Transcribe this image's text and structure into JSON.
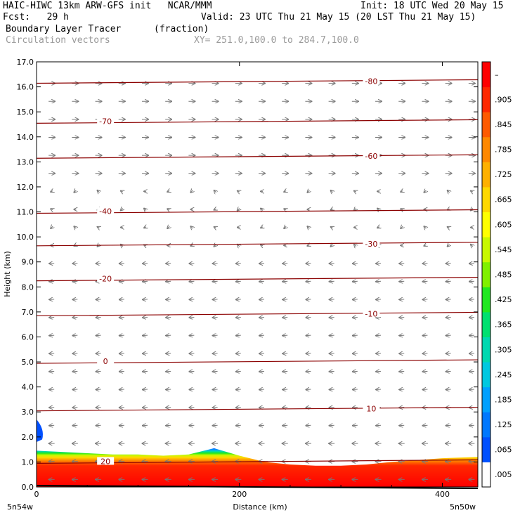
{
  "header": {
    "line1_left": "HAIC-HIWC 13km ARW-GFS init   NCAR/MMM",
    "line1_right": "Init: 18 UTC Wed 20 May 15",
    "line2_left": "Fcst:   29 h",
    "line2_right": "Valid: 23 UTC Thu 21 May 15 (20 LST Thu 21 May 15)",
    "line3_left": "Boundary Layer Tracer",
    "line3_mid": "(fraction)",
    "line4_left": "Circulation vectors",
    "line4_mid": "XY= 251.0,100.0 to 284.7,100.0"
  },
  "chart_data": {
    "type": "cross-section",
    "title": "Boundary Layer Tracer",
    "units": "(fraction)",
    "xlabel": "Distance (km)",
    "ylabel": "Height (km)",
    "xlim": [
      0,
      435
    ],
    "ylim": [
      0,
      17
    ],
    "x_ticks": [
      0,
      200,
      400
    ],
    "y_ticks": [
      "0.0",
      "1.0",
      "2.0",
      "3.0",
      "4.0",
      "5.0",
      "6.0",
      "7.0",
      "8.0",
      "9.0",
      "10.0",
      "11.0",
      "12.0",
      "13.0",
      "14.0",
      "15.0",
      "16.0",
      "17.0"
    ],
    "x_end_labels": {
      "left": "5n54w",
      "right": "5n50w"
    },
    "colorbar": {
      "labels": [
        ".005",
        ".065",
        ".125",
        ".185",
        ".245",
        ".305",
        ".365",
        ".425",
        ".485",
        ".545",
        ".605",
        ".665",
        ".725",
        ".785",
        ".845",
        ".905",
        "–"
      ],
      "colors": [
        "#ffffff",
        "#0050ff",
        "#0078ff",
        "#00a0ff",
        "#00c8e0",
        "#00d8b0",
        "#00e070",
        "#20e820",
        "#80f000",
        "#c8f800",
        "#ffff00",
        "#ffd800",
        "#ffb000",
        "#ff8800",
        "#ff5a00",
        "#ff2800",
        "#ff0000"
      ]
    },
    "temperature_contours": [
      {
        "value": 20,
        "height_km": 1.0,
        "label": "20"
      },
      {
        "value": 10,
        "height_km": 3.1,
        "label": "10"
      },
      {
        "value": 0,
        "height_km": 5.0,
        "label": "0"
      },
      {
        "value": -10,
        "height_km": 6.9,
        "label": "-10"
      },
      {
        "value": -20,
        "height_km": 8.3,
        "label": "-20"
      },
      {
        "value": -30,
        "height_km": 9.7,
        "label": "-30"
      },
      {
        "value": -40,
        "height_km": 11.0,
        "label": "-40"
      },
      {
        "value": -60,
        "height_km": 13.2,
        "label": "-60"
      },
      {
        "value": -70,
        "height_km": 14.6,
        "label": "-70"
      },
      {
        "value": -80,
        "height_km": 16.2,
        "label": "-80"
      }
    ],
    "tracer_top_km": [
      1.45,
      1.4,
      1.35,
      1.3,
      1.3,
      1.25,
      1.3,
      1.55,
      1.25,
      1.0,
      0.9,
      0.85,
      0.85,
      0.9,
      1.0,
      1.15,
      1.2
    ],
    "tracer_x_km": [
      0,
      25,
      50,
      75,
      100,
      125,
      150,
      175,
      200,
      225,
      250,
      275,
      300,
      325,
      350,
      400,
      435
    ],
    "blue_patch_top_km": 2.7
  }
}
